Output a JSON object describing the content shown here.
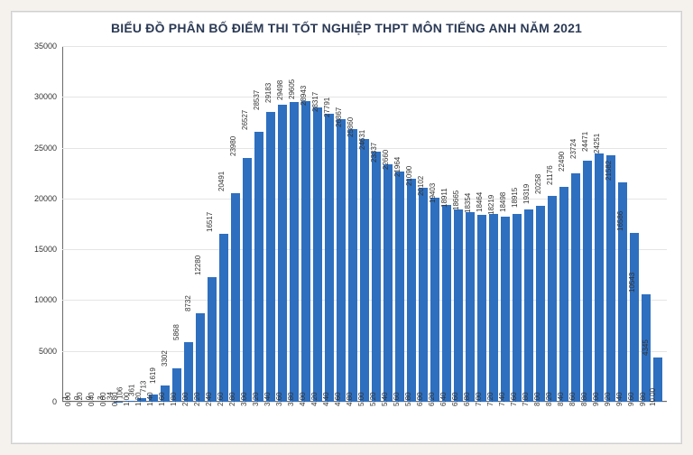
{
  "chart": {
    "type": "bar",
    "title": "BIỂU ĐỒ PHÂN BỐ ĐIỂM THI TỐT NGHIỆP THPT MÔN TIẾNG ANH NĂM 2021",
    "title_fontsize": 14,
    "title_color": "#2b3a55",
    "background_color": "#ffffff",
    "page_background": "#f5f2ee",
    "grid_color": "#e5e5e5",
    "axis_color": "#6a6a6a",
    "bar_color": "#2e6fbf",
    "bar_width": 0.82,
    "label_fontsize": 8,
    "ylim": [
      0,
      35000
    ],
    "ytick_step": 5000,
    "yticks": [
      0,
      5000,
      10000,
      15000,
      20000,
      25000,
      30000,
      35000
    ],
    "categories": [
      "0.00",
      "0.20",
      "0.40",
      "0.60",
      "0.80",
      "1.00",
      "1.20",
      "1.40",
      "1.60",
      "1.80",
      "2.00",
      "2.20",
      "2.40",
      "2.60",
      "2.80",
      "3.00",
      "3.20",
      "3.40",
      "3.60",
      "3.80",
      "4.00",
      "4.20",
      "4.40",
      "4.60",
      "4.80",
      "5.00",
      "5.20",
      "5.40",
      "5.60",
      "5.80",
      "6.00",
      "6.20",
      "6.40",
      "6.60",
      "6.80",
      "7.00",
      "7.20",
      "7.40",
      "7.60",
      "7.80",
      "8.00",
      "8.20",
      "8.40",
      "8.60",
      "8.80",
      "9.00",
      "9.20",
      "9.40",
      "9.60",
      "9.80",
      "10.00"
    ],
    "values": [
      1,
      0,
      0,
      3,
      34,
      106,
      361,
      713,
      1619,
      3302,
      5868,
      8732,
      12280,
      16517,
      20491,
      23980,
      26527,
      28537,
      29183,
      29498,
      29605,
      28943,
      28317,
      27791,
      26867,
      25860,
      24631,
      23337,
      22660,
      21964,
      21090,
      20102,
      19403,
      18911,
      18665,
      18354,
      18464,
      18219,
      18498,
      18915,
      19319,
      20258,
      21176,
      22490,
      23724,
      24471,
      24251,
      21582,
      16586,
      10543,
      4345
    ]
  }
}
